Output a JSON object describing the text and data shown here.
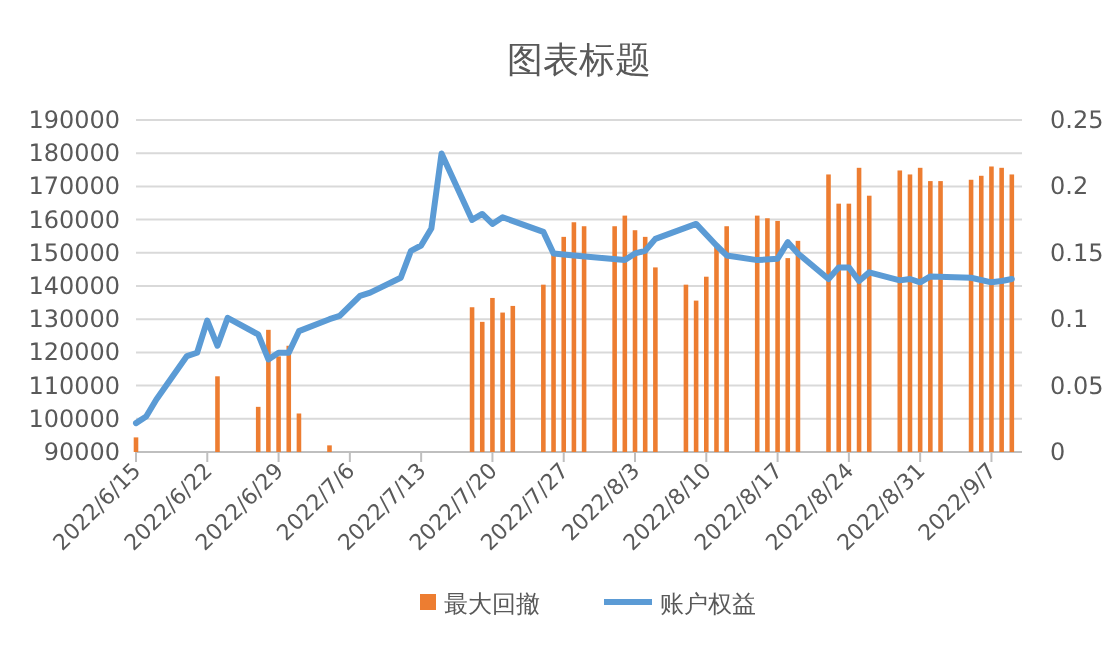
{
  "chart_data": {
    "type": "bar",
    "title": "图表标题",
    "legend": "bottom",
    "grid": "y",
    "xlim": [
      "2022-06-15",
      "2022-09-10"
    ],
    "xticks": [
      {
        "value": "2022-06-15",
        "label": "2022/6/15"
      },
      {
        "value": "2022-06-22",
        "label": "2022/6/22"
      },
      {
        "value": "2022-06-29",
        "label": "2022/6/29"
      },
      {
        "value": "2022-07-06",
        "label": "2022/7/6"
      },
      {
        "value": "2022-07-13",
        "label": "2022/7/13"
      },
      {
        "value": "2022-07-20",
        "label": "2022/7/20"
      },
      {
        "value": "2022-07-27",
        "label": "2022/7/27"
      },
      {
        "value": "2022-08-03",
        "label": "2022/8/3"
      },
      {
        "value": "2022-08-10",
        "label": "2022/8/10"
      },
      {
        "value": "2022-08-17",
        "label": "2022/8/17"
      },
      {
        "value": "2022-08-24",
        "label": "2022/8/24"
      },
      {
        "value": "2022-08-31",
        "label": "2022/8/31"
      },
      {
        "value": "2022-09-07",
        "label": "2022/9/7"
      }
    ],
    "ylim": [
      90000,
      190000
    ],
    "yticks": [
      90000,
      100000,
      110000,
      120000,
      130000,
      140000,
      150000,
      160000,
      170000,
      180000,
      190000
    ],
    "y2lim": [
      0,
      0.25
    ],
    "y2ticks": [
      0,
      0.05,
      0.1,
      0.15,
      0.2,
      0.25
    ],
    "series": [
      {
        "name": "最大回撤",
        "axis": "y2",
        "color": "#ed7d31",
        "x": [
          "2022-06-15",
          "2022-06-23",
          "2022-06-27",
          "2022-06-28",
          "2022-06-29",
          "2022-06-30",
          "2022-07-01",
          "2022-07-04",
          "2022-07-18",
          "2022-07-19",
          "2022-07-20",
          "2022-07-21",
          "2022-07-22",
          "2022-07-25",
          "2022-07-26",
          "2022-07-27",
          "2022-07-28",
          "2022-07-29",
          "2022-08-01",
          "2022-08-02",
          "2022-08-03",
          "2022-08-04",
          "2022-08-05",
          "2022-08-08",
          "2022-08-09",
          "2022-08-10",
          "2022-08-11",
          "2022-08-12",
          "2022-08-15",
          "2022-08-16",
          "2022-08-17",
          "2022-08-18",
          "2022-08-19",
          "2022-08-22",
          "2022-08-23",
          "2022-08-24",
          "2022-08-25",
          "2022-08-26",
          "2022-08-29",
          "2022-08-30",
          "2022-08-31",
          "2022-09-01",
          "2022-09-02",
          "2022-09-05",
          "2022-09-06",
          "2022-09-07",
          "2022-09-08",
          "2022-09-09"
        ],
        "values": [
          0.011,
          0.057,
          0.034,
          0.092,
          0.072,
          0.08,
          0.029,
          0.005,
          0.109,
          0.098,
          0.116,
          0.105,
          0.11,
          0.126,
          0.149,
          0.162,
          0.173,
          0.17,
          0.17,
          0.178,
          0.167,
          0.162,
          0.139,
          0.126,
          0.114,
          0.132,
          0.156,
          0.17,
          0.178,
          0.176,
          0.174,
          0.146,
          0.159,
          0.209,
          0.187,
          0.187,
          0.214,
          0.193,
          0.212,
          0.209,
          0.214,
          0.204,
          0.204,
          0.205,
          0.208,
          0.215,
          0.214,
          0.209
        ]
      },
      {
        "name": "账户权益",
        "type": "line",
        "color": "#5b9bd5",
        "x": [
          "2022-06-15",
          "2022-06-16",
          "2022-06-17",
          "2022-06-20",
          "2022-06-21",
          "2022-06-22",
          "2022-06-23",
          "2022-06-24",
          "2022-06-27",
          "2022-06-28",
          "2022-06-29",
          "2022-06-30",
          "2022-07-01",
          "2022-07-04",
          "2022-07-05",
          "2022-07-07",
          "2022-07-08",
          "2022-07-11",
          "2022-07-12",
          "2022-07-13",
          "2022-07-14",
          "2022-07-15",
          "2022-07-18",
          "2022-07-19",
          "2022-07-20",
          "2022-07-21",
          "2022-07-25",
          "2022-07-26",
          "2022-07-28",
          "2022-08-02",
          "2022-08-03",
          "2022-08-04",
          "2022-08-05",
          "2022-08-09",
          "2022-08-11",
          "2022-08-12",
          "2022-08-15",
          "2022-08-17",
          "2022-08-18",
          "2022-08-19",
          "2022-08-22",
          "2022-08-23",
          "2022-08-24",
          "2022-08-25",
          "2022-08-26",
          "2022-08-29",
          "2022-08-30",
          "2022-08-31",
          "2022-09-01",
          "2022-09-05",
          "2022-09-07",
          "2022-09-08",
          "2022-09-09"
        ],
        "values": [
          98700,
          100700,
          105800,
          118900,
          119900,
          129600,
          122000,
          130400,
          125400,
          117900,
          119900,
          119900,
          126400,
          130000,
          131000,
          137000,
          138000,
          142500,
          150600,
          152200,
          157300,
          179900,
          159900,
          161700,
          158700,
          160700,
          156300,
          149800,
          149200,
          147800,
          149800,
          150600,
          154200,
          158700,
          152200,
          149200,
          147800,
          148200,
          153200,
          149800,
          142100,
          145600,
          145600,
          141500,
          144100,
          141700,
          142100,
          141100,
          142900,
          142500,
          141100,
          141500,
          142100
        ]
      }
    ]
  }
}
